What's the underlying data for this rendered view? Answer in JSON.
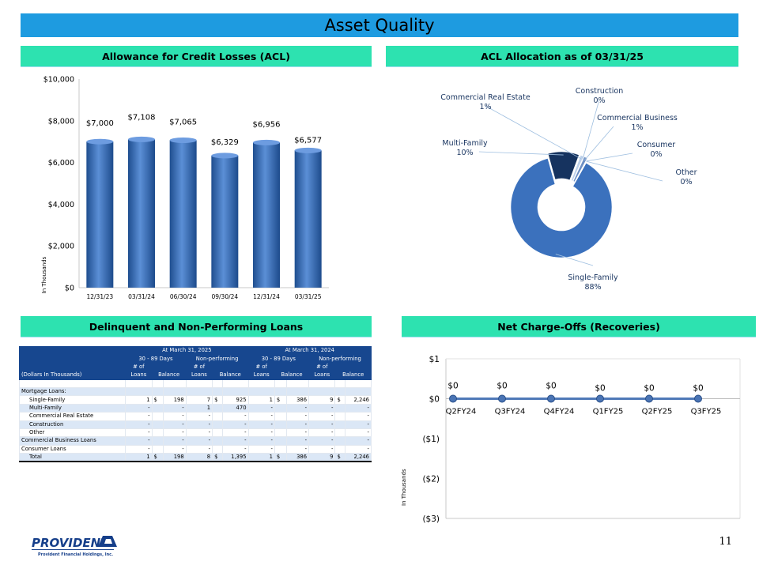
{
  "page_title": "Asset Quality",
  "page_number": "11",
  "colors": {
    "title_bar": "#1e9be0",
    "section_header": "#2de2b0",
    "bar_blue": "#3b6fb6",
    "table_header": "#17478f",
    "table_band": "#dbe7f6"
  },
  "acl_panel": {
    "header": "Allowance for Credit Losses (ACL)",
    "y_label": "In Thousands",
    "chart_data": {
      "type": "bar",
      "categories": [
        "12/31/23",
        "03/31/24",
        "06/30/24",
        "09/30/24",
        "12/31/24",
        "03/31/25"
      ],
      "values": [
        7000,
        7108,
        7065,
        6329,
        6956,
        6577
      ],
      "data_labels": [
        "$7,000",
        "$7,108",
        "$7,065",
        "$6,329",
        "$6,956",
        "$6,577"
      ],
      "yticks": [
        0,
        2000,
        4000,
        6000,
        8000,
        10000
      ],
      "ytick_labels": [
        "$0",
        "$2,000",
        "$4,000",
        "$6,000",
        "$8,000",
        "$10,000"
      ],
      "ylim": [
        0,
        10000
      ],
      "title": "Allowance for Credit Losses (ACL)",
      "ylabel": "In Thousands"
    }
  },
  "allocation_panel": {
    "header": "ACL Allocation as of 03/31/25",
    "chart_data": {
      "type": "pie",
      "categories": [
        "Single-Family",
        "Multi-Family",
        "Commercial Real Estate",
        "Construction",
        "Commercial Business",
        "Consumer",
        "Other"
      ],
      "values": [
        88,
        10,
        1,
        0,
        1,
        0,
        0
      ],
      "labels": [
        {
          "name": "Single-Family",
          "pct": "88%"
        },
        {
          "name": "Multi-Family",
          "pct": "10%"
        },
        {
          "name": "Commercial Real Estate",
          "pct": "1%"
        },
        {
          "name": "Construction",
          "pct": "0%"
        },
        {
          "name": "Commercial Business",
          "pct": "1%"
        },
        {
          "name": "Consumer",
          "pct": "0%"
        },
        {
          "name": "Other",
          "pct": "0%"
        }
      ],
      "title": "ACL Allocation as of 03/31/25"
    }
  },
  "delinquent_panel": {
    "header": "Delinquent and Non-Performing Loans",
    "table": {
      "period_1": "At March 31, 2025",
      "period_2": "At March 31, 2024",
      "group_a": "30 - 89 Days",
      "group_b": "Non-performing",
      "row_header_label": "(Dollars In Thousands)",
      "num_of": "# of",
      "loans": "Loans",
      "balance": "Balance",
      "section_label": "Mortgage Loans:",
      "rows": [
        {
          "label": "Single-Family",
          "indent": 1,
          "c": [
            "1",
            "$",
            "198",
            "7",
            "$",
            "925",
            "1",
            "$",
            "386",
            "9",
            "$",
            "2,246"
          ]
        },
        {
          "label": "Multi-Family",
          "indent": 1,
          "c": [
            "-",
            "",
            "-",
            "1",
            "",
            "470",
            "-",
            "",
            "-",
            "-",
            "",
            "-"
          ]
        },
        {
          "label": "Commercial Real Estate",
          "indent": 1,
          "c": [
            "-",
            "",
            "-",
            "-",
            "",
            "-",
            "-",
            "",
            "-",
            "-",
            "",
            "-"
          ]
        },
        {
          "label": "Construction",
          "indent": 1,
          "c": [
            "-",
            "",
            "-",
            "-",
            "",
            "-",
            "-",
            "",
            "-",
            "-",
            "",
            "-"
          ]
        },
        {
          "label": "Other",
          "indent": 1,
          "c": [
            "-",
            "",
            "-",
            "-",
            "",
            "-",
            "-",
            "",
            "-",
            "-",
            "",
            "-"
          ]
        },
        {
          "label": "Commercial Business Loans",
          "indent": 0,
          "c": [
            "-",
            "",
            "-",
            "-",
            "",
            "-",
            "-",
            "",
            "-",
            "-",
            "",
            "-"
          ]
        },
        {
          "label": "Consumer Loans",
          "indent": 0,
          "c": [
            "-",
            "",
            "-",
            "-",
            "",
            "-",
            "-",
            "",
            "-",
            "-",
            "",
            "-"
          ]
        }
      ],
      "total": {
        "label": "Total",
        "c": [
          "1",
          "$",
          "198",
          "8",
          "$",
          "1,395",
          "1",
          "$",
          "386",
          "9",
          "$",
          "2,246"
        ]
      }
    }
  },
  "nco_panel": {
    "header": "Net Charge-Offs (Recoveries)",
    "y_label": "In Thousands",
    "chart_data": {
      "type": "line",
      "categories": [
        "Q2FY24",
        "Q3FY24",
        "Q4FY24",
        "Q1FY25",
        "Q2FY25",
        "Q3FY25"
      ],
      "values": [
        0,
        0,
        0,
        0,
        0,
        0
      ],
      "data_labels": [
        "$0",
        "$0",
        "$0",
        "$0",
        "$0",
        "$0"
      ],
      "yticks": [
        1,
        0,
        -1,
        -2,
        -3
      ],
      "ytick_labels": [
        "$1",
        "$0",
        "($1)",
        "($2)",
        "($3)"
      ],
      "ylim": [
        -3,
        1
      ],
      "title": "Net Charge-Offs (Recoveries)",
      "ylabel": "In Thousands"
    }
  },
  "logo": {
    "name": "PROVIDENT",
    "subtitle": "Provident Financial Holdings, Inc."
  }
}
